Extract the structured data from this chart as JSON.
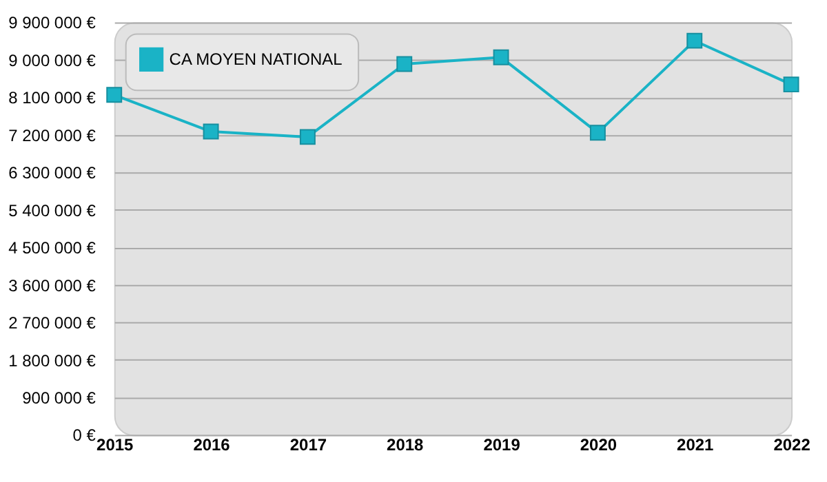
{
  "chart_data": {
    "type": "line",
    "x": [
      2015,
      2016,
      2017,
      2018,
      2019,
      2020,
      2021,
      2022
    ],
    "series": [
      {
        "name": "CA MOYEN NATIONAL",
        "color": "#1ab3c6",
        "values": [
          8160000,
          7280000,
          7150000,
          8900000,
          9060000,
          7250000,
          9460000,
          8410000
        ]
      }
    ],
    "xlim": [
      2015,
      2022
    ],
    "xticks": [
      2015,
      2016,
      2017,
      2018,
      2019,
      2020,
      2021,
      2022
    ],
    "ylim": [
      0,
      9900000
    ],
    "yticks": [
      {
        "value": 0,
        "label": "0 €"
      },
      {
        "value": 900000,
        "label": "900 000 €"
      },
      {
        "value": 1800000,
        "label": "1 800 000 €"
      },
      {
        "value": 2700000,
        "label": "2 700 000 €"
      },
      {
        "value": 3600000,
        "label": "3 600 000 €"
      },
      {
        "value": 4500000,
        "label": "4 500 000 €"
      },
      {
        "value": 5400000,
        "label": "5 400 000 €"
      },
      {
        "value": 6300000,
        "label": "6 300 000 €"
      },
      {
        "value": 7200000,
        "label": "7 200 000 €"
      },
      {
        "value": 8100000,
        "label": "8 100 000 €"
      },
      {
        "value": 9000000,
        "label": "9 000 000 €"
      },
      {
        "value": 9900000,
        "label": "9 900 000 €"
      }
    ],
    "grid": "y",
    "legend": "top left",
    "marker": "square",
    "line_style": "solid"
  }
}
